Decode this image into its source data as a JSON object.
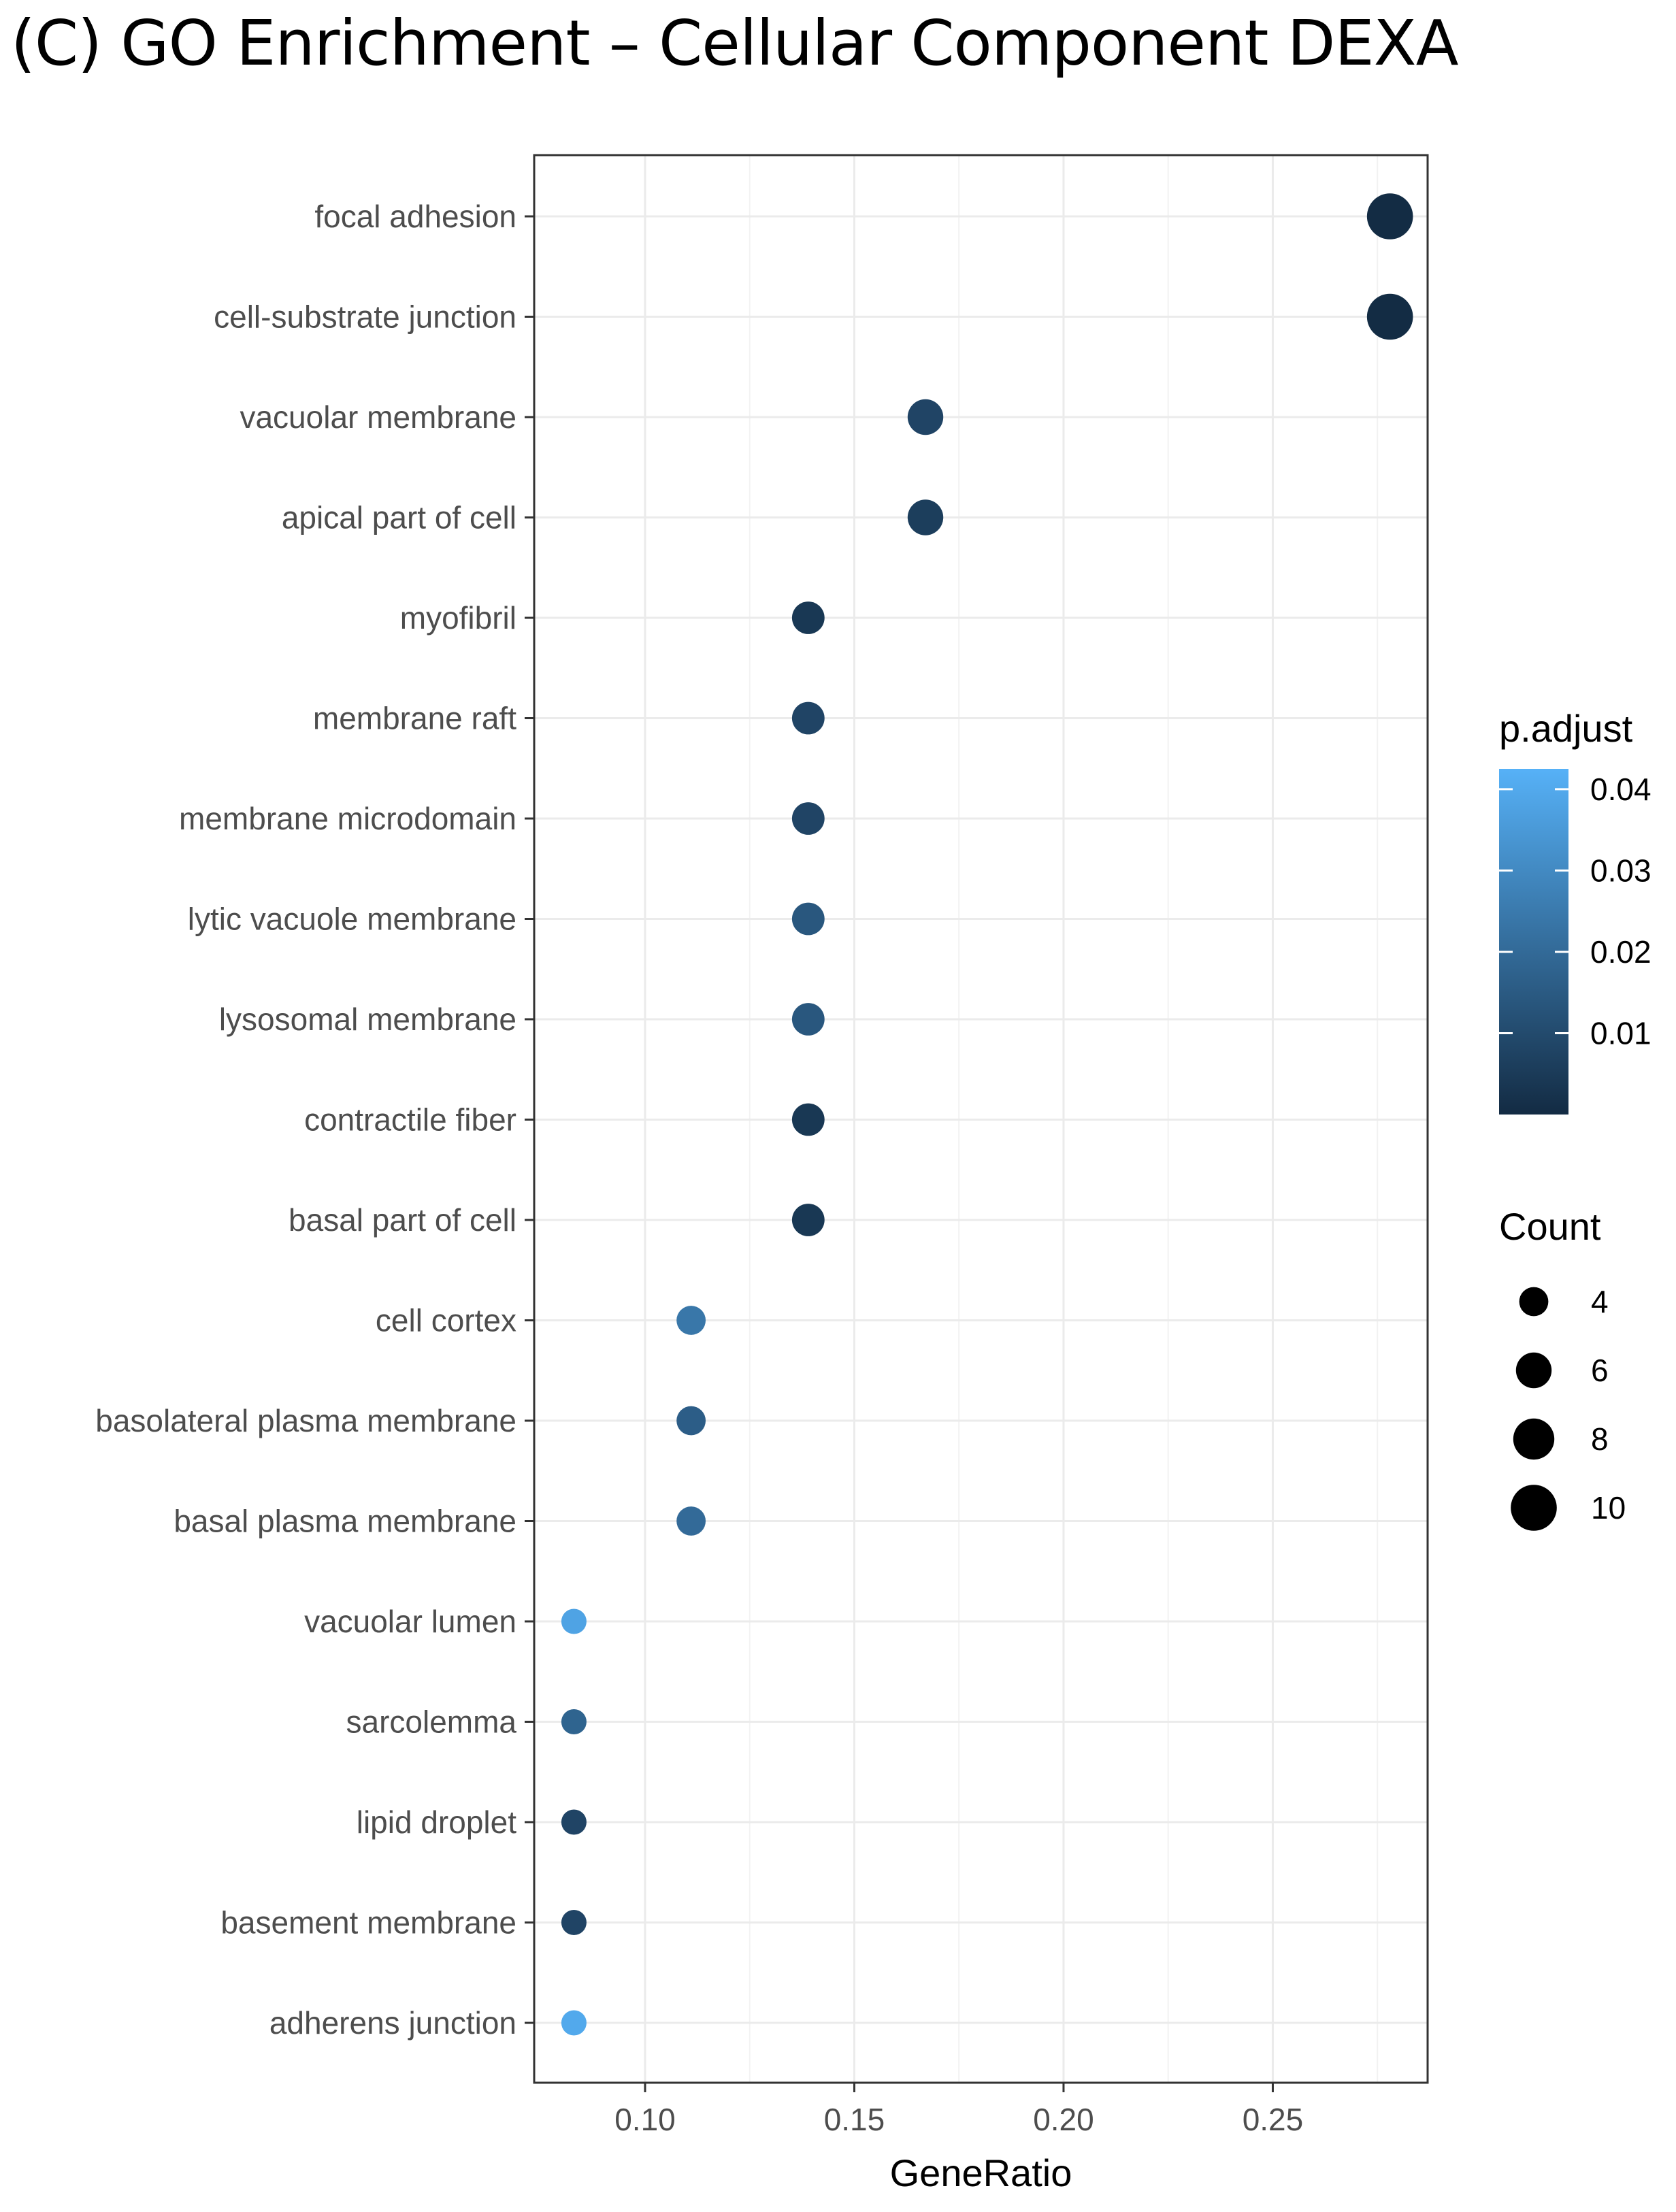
{
  "chart_data": {
    "type": "scatter",
    "title": "(C) GO Enrichment – Cellular Component DEXA",
    "xlabel": "GeneRatio",
    "ylabel": "",
    "xlim": [
      0.0735,
      0.287
    ],
    "x_ticks": [
      "0.10",
      "0.15",
      "0.20",
      "0.25"
    ],
    "grid": true,
    "points": [
      {
        "term": "focal adhesion",
        "gene_ratio": 0.278,
        "count": 10,
        "p_adjust": 0.0002
      },
      {
        "term": "cell-substrate junction",
        "gene_ratio": 0.278,
        "count": 10,
        "p_adjust": 0.0002
      },
      {
        "term": "vacuolar membrane",
        "gene_ratio": 0.167,
        "count": 6,
        "p_adjust": 0.008
      },
      {
        "term": "apical part of cell",
        "gene_ratio": 0.167,
        "count": 6,
        "p_adjust": 0.006
      },
      {
        "term": "myofibril",
        "gene_ratio": 0.139,
        "count": 5,
        "p_adjust": 0.004
      },
      {
        "term": "membrane raft",
        "gene_ratio": 0.139,
        "count": 5,
        "p_adjust": 0.008
      },
      {
        "term": "membrane microdomain",
        "gene_ratio": 0.139,
        "count": 5,
        "p_adjust": 0.008
      },
      {
        "term": "lytic vacuole membrane",
        "gene_ratio": 0.139,
        "count": 5,
        "p_adjust": 0.014
      },
      {
        "term": "lysosomal membrane",
        "gene_ratio": 0.139,
        "count": 5,
        "p_adjust": 0.014
      },
      {
        "term": "contractile fiber",
        "gene_ratio": 0.139,
        "count": 5,
        "p_adjust": 0.004
      },
      {
        "term": "basal part of cell",
        "gene_ratio": 0.139,
        "count": 5,
        "p_adjust": 0.004
      },
      {
        "term": "cell cortex",
        "gene_ratio": 0.111,
        "count": 4,
        "p_adjust": 0.024
      },
      {
        "term": "basolateral plasma membrane",
        "gene_ratio": 0.111,
        "count": 4,
        "p_adjust": 0.016
      },
      {
        "term": "basal plasma membrane",
        "gene_ratio": 0.111,
        "count": 4,
        "p_adjust": 0.02
      },
      {
        "term": "vacuolar lumen",
        "gene_ratio": 0.083,
        "count": 3,
        "p_adjust": 0.038
      },
      {
        "term": "sarcolemma",
        "gene_ratio": 0.083,
        "count": 3,
        "p_adjust": 0.018
      },
      {
        "term": "lipid droplet",
        "gene_ratio": 0.083,
        "count": 3,
        "p_adjust": 0.008
      },
      {
        "term": "basement membrane",
        "gene_ratio": 0.083,
        "count": 3,
        "p_adjust": 0.008
      },
      {
        "term": "adherens junction",
        "gene_ratio": 0.083,
        "count": 3,
        "p_adjust": 0.04
      }
    ],
    "color_legend": {
      "title": "p.adjust",
      "ticks": [
        "0.04",
        "0.03",
        "0.02",
        "0.01"
      ],
      "range": [
        0.0,
        0.0425
      ],
      "low_color": "#132B43",
      "high_color": "#56B1F7"
    },
    "size_legend": {
      "title": "Count",
      "values": [
        4,
        6,
        8,
        10
      ],
      "labels": [
        "4",
        "6",
        "8",
        "10"
      ]
    }
  }
}
